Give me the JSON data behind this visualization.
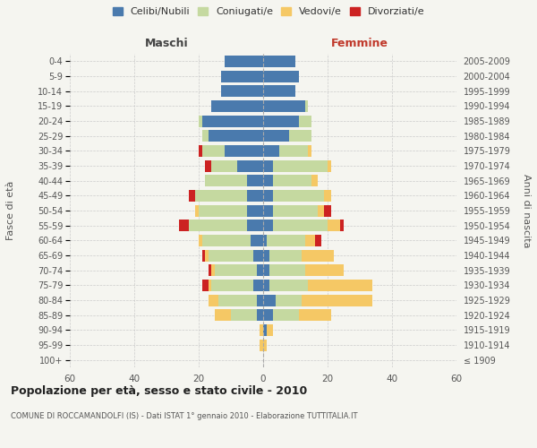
{
  "age_groups": [
    "100+",
    "95-99",
    "90-94",
    "85-89",
    "80-84",
    "75-79",
    "70-74",
    "65-69",
    "60-64",
    "55-59",
    "50-54",
    "45-49",
    "40-44",
    "35-39",
    "30-34",
    "25-29",
    "20-24",
    "15-19",
    "10-14",
    "5-9",
    "0-4"
  ],
  "birth_years": [
    "≤ 1909",
    "1910-1914",
    "1915-1919",
    "1920-1924",
    "1925-1929",
    "1930-1934",
    "1935-1939",
    "1940-1944",
    "1945-1949",
    "1950-1954",
    "1955-1959",
    "1960-1964",
    "1965-1969",
    "1970-1974",
    "1975-1979",
    "1980-1984",
    "1985-1989",
    "1990-1994",
    "1995-1999",
    "2000-2004",
    "2005-2009"
  ],
  "males": {
    "celibi": [
      0,
      0,
      0,
      2,
      2,
      3,
      2,
      3,
      4,
      5,
      5,
      5,
      5,
      8,
      12,
      17,
      19,
      16,
      13,
      13,
      12
    ],
    "coniugati": [
      0,
      0,
      0,
      8,
      12,
      13,
      13,
      14,
      15,
      18,
      15,
      16,
      13,
      8,
      7,
      2,
      1,
      0,
      0,
      0,
      0
    ],
    "vedovi": [
      0,
      1,
      1,
      5,
      3,
      1,
      1,
      1,
      1,
      0,
      1,
      0,
      0,
      0,
      0,
      0,
      0,
      0,
      0,
      0,
      0
    ],
    "divorziati": [
      0,
      0,
      0,
      0,
      0,
      2,
      1,
      1,
      0,
      3,
      0,
      2,
      0,
      2,
      1,
      0,
      0,
      0,
      0,
      0,
      0
    ]
  },
  "females": {
    "nubili": [
      0,
      0,
      1,
      3,
      4,
      2,
      2,
      2,
      1,
      3,
      3,
      3,
      3,
      3,
      5,
      8,
      11,
      13,
      10,
      11,
      10
    ],
    "coniugate": [
      0,
      0,
      0,
      8,
      8,
      12,
      11,
      10,
      12,
      17,
      14,
      16,
      12,
      17,
      9,
      7,
      4,
      1,
      0,
      0,
      0
    ],
    "vedove": [
      0,
      1,
      2,
      10,
      22,
      20,
      12,
      10,
      3,
      4,
      2,
      2,
      2,
      1,
      1,
      0,
      0,
      0,
      0,
      0,
      0
    ],
    "divorziate": [
      0,
      0,
      0,
      0,
      0,
      0,
      0,
      0,
      2,
      1,
      2,
      0,
      0,
      0,
      0,
      0,
      0,
      0,
      0,
      0,
      0
    ]
  },
  "color_celibi": "#4a7aad",
  "color_coniugati": "#c5d9a0",
  "color_vedovi": "#f5c865",
  "color_divorziati": "#cc2222",
  "xlim": 60,
  "title": "Popolazione per età, sesso e stato civile - 2010",
  "subtitle": "COMUNE DI ROCCAMANDOLFI (IS) - Dati ISTAT 1° gennaio 2010 - Elaborazione TUTTITALIA.IT",
  "ylabel_left": "Fasce di età",
  "ylabel_right": "Anni di nascita",
  "xlabel_left": "Maschi",
  "xlabel_right": "Femmine",
  "bg_color": "#f5f5f0",
  "grid_color": "#cccccc"
}
